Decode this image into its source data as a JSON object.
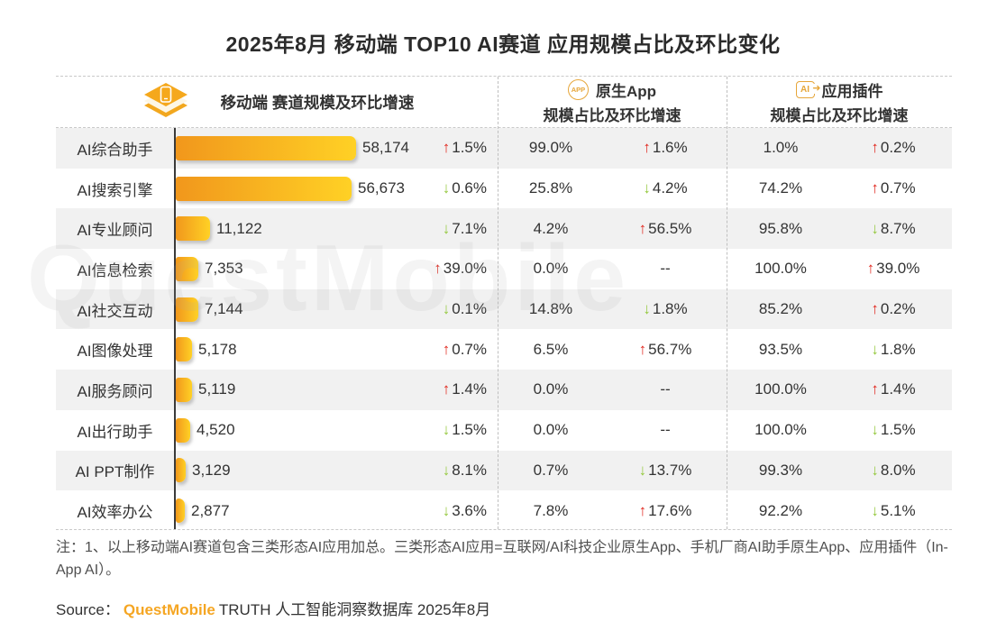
{
  "title": "2025年8月 移动端 TOP10 AI赛道 应用规模占比及环比变化",
  "watermark": "QuestMobile",
  "header": {
    "mobile": {
      "label": "移动端 赛道规模及环比增速",
      "icon": "mobile-layers-icon"
    },
    "native_app": {
      "line1": "原生App",
      "line2": "规模占比及环比增速",
      "icon": "native-app-icon",
      "icon_text": "APP"
    },
    "plugin": {
      "line1": "应用插件",
      "line2": "规模占比及环比增速",
      "icon": "ai-plugin-icon",
      "icon_text": "AI"
    }
  },
  "colors": {
    "bar_gradient_start": "#f1971c",
    "bar_gradient_end": "#ffd125",
    "up_red": "#e1251b",
    "down_green": "#94c83d",
    "row_alt_gray": "#f1f1f1",
    "accent_gold": "#e6a63a",
    "brand_orange": "#f5a623"
  },
  "chart_data": {
    "type": "bar",
    "orientation": "horizontal",
    "title": "2025年8月 移动端 TOP10 AI赛道 应用规模占比及环比变化",
    "categories": [
      "AI综合助手",
      "AI搜索引擎",
      "AI专业顾问",
      "AI信息检索",
      "AI社交互动",
      "AI图像处理",
      "AI服务顾问",
      "AI出行助手",
      "AI PPT制作",
      "AI效率办公"
    ],
    "series": [
      {
        "name": "移动端赛道规模(万)",
        "values": [
          58174,
          56673,
          11122,
          7353,
          7144,
          5178,
          5119,
          4520,
          3129,
          2877
        ]
      },
      {
        "name": "移动端环比增速(%)",
        "values": [
          1.5,
          -0.6,
          -7.1,
          39.0,
          -0.1,
          0.7,
          1.4,
          -1.5,
          -8.1,
          -3.6
        ]
      },
      {
        "name": "原生App规模占比(%)",
        "values": [
          99.0,
          25.8,
          4.2,
          0.0,
          14.8,
          6.5,
          0.0,
          0.0,
          0.7,
          7.8
        ]
      },
      {
        "name": "原生App环比增速(%)",
        "values": [
          1.6,
          -4.2,
          56.5,
          null,
          -1.8,
          56.7,
          null,
          null,
          -13.7,
          17.6
        ]
      },
      {
        "name": "应用插件规模占比(%)",
        "values": [
          1.0,
          74.2,
          95.8,
          100.0,
          85.2,
          93.5,
          100.0,
          100.0,
          99.3,
          92.2
        ]
      },
      {
        "name": "应用插件环比增速(%)",
        "values": [
          0.2,
          0.7,
          -8.7,
          39.0,
          0.2,
          -1.8,
          1.4,
          -1.5,
          -8.0,
          -5.1
        ]
      }
    ],
    "xlim": [
      0,
      58174
    ],
    "legend_position": "none",
    "grid": false
  },
  "rows": [
    {
      "category": "AI综合助手",
      "scale": "58,174",
      "scale_value": 58174,
      "scale_dir": "up",
      "scale_change": "1.5%",
      "native_share": "99.0%",
      "native_dir": "up",
      "native_change": "1.6%",
      "plugin_share": "1.0%",
      "plugin_dir": "up",
      "plugin_change": "0.2%"
    },
    {
      "category": "AI搜索引擎",
      "scale": "56,673",
      "scale_value": 56673,
      "scale_dir": "down",
      "scale_change": "0.6%",
      "native_share": "25.8%",
      "native_dir": "down",
      "native_change": "4.2%",
      "plugin_share": "74.2%",
      "plugin_dir": "up",
      "plugin_change": "0.7%"
    },
    {
      "category": "AI专业顾问",
      "scale": "11,122",
      "scale_value": 11122,
      "scale_dir": "down",
      "scale_change": "7.1%",
      "native_share": "4.2%",
      "native_dir": "up",
      "native_change": "56.5%",
      "plugin_share": "95.8%",
      "plugin_dir": "down",
      "plugin_change": "8.7%"
    },
    {
      "category": "AI信息检索",
      "scale": "7,353",
      "scale_value": 7353,
      "scale_dir": "up",
      "scale_change": "39.0%",
      "native_share": "0.0%",
      "native_dir": "none",
      "native_change": "--",
      "plugin_share": "100.0%",
      "plugin_dir": "up",
      "plugin_change": "39.0%"
    },
    {
      "category": "AI社交互动",
      "scale": "7,144",
      "scale_value": 7144,
      "scale_dir": "down",
      "scale_change": "0.1%",
      "native_share": "14.8%",
      "native_dir": "down",
      "native_change": "1.8%",
      "plugin_share": "85.2%",
      "plugin_dir": "up",
      "plugin_change": "0.2%"
    },
    {
      "category": "AI图像处理",
      "scale": "5,178",
      "scale_value": 5178,
      "scale_dir": "up",
      "scale_change": "0.7%",
      "native_share": "6.5%",
      "native_dir": "up",
      "native_change": "56.7%",
      "plugin_share": "93.5%",
      "plugin_dir": "down",
      "plugin_change": "1.8%"
    },
    {
      "category": "AI服务顾问",
      "scale": "5,119",
      "scale_value": 5119,
      "scale_dir": "up",
      "scale_change": "1.4%",
      "native_share": "0.0%",
      "native_dir": "none",
      "native_change": "--",
      "plugin_share": "100.0%",
      "plugin_dir": "up",
      "plugin_change": "1.4%"
    },
    {
      "category": "AI出行助手",
      "scale": "4,520",
      "scale_value": 4520,
      "scale_dir": "down",
      "scale_change": "1.5%",
      "native_share": "0.0%",
      "native_dir": "none",
      "native_change": "--",
      "plugin_share": "100.0%",
      "plugin_dir": "down",
      "plugin_change": "1.5%"
    },
    {
      "category": "AI PPT制作",
      "scale": "3,129",
      "scale_value": 3129,
      "scale_dir": "down",
      "scale_change": "8.1%",
      "native_share": "0.7%",
      "native_dir": "down",
      "native_change": "13.7%",
      "plugin_share": "99.3%",
      "plugin_dir": "down",
      "plugin_change": "8.0%"
    },
    {
      "category": "AI效率办公",
      "scale": "2,877",
      "scale_value": 2877,
      "scale_dir": "down",
      "scale_change": "3.6%",
      "native_share": "7.8%",
      "native_dir": "up",
      "native_change": "17.6%",
      "plugin_share": "92.2%",
      "plugin_dir": "down",
      "plugin_change": "5.1%"
    }
  ],
  "note": "注：1、以上移动端AI赛道包含三类形态AI应用加总。三类形态AI应用=互联网/AI科技企业原生App、手机厂商AI助手原生App、应用插件（In-App AI）。",
  "source": {
    "prefix": "Source：",
    "brand": "QuestMobile",
    "suffix": "TRUTH 人工智能洞察数据库 2025年8月"
  }
}
